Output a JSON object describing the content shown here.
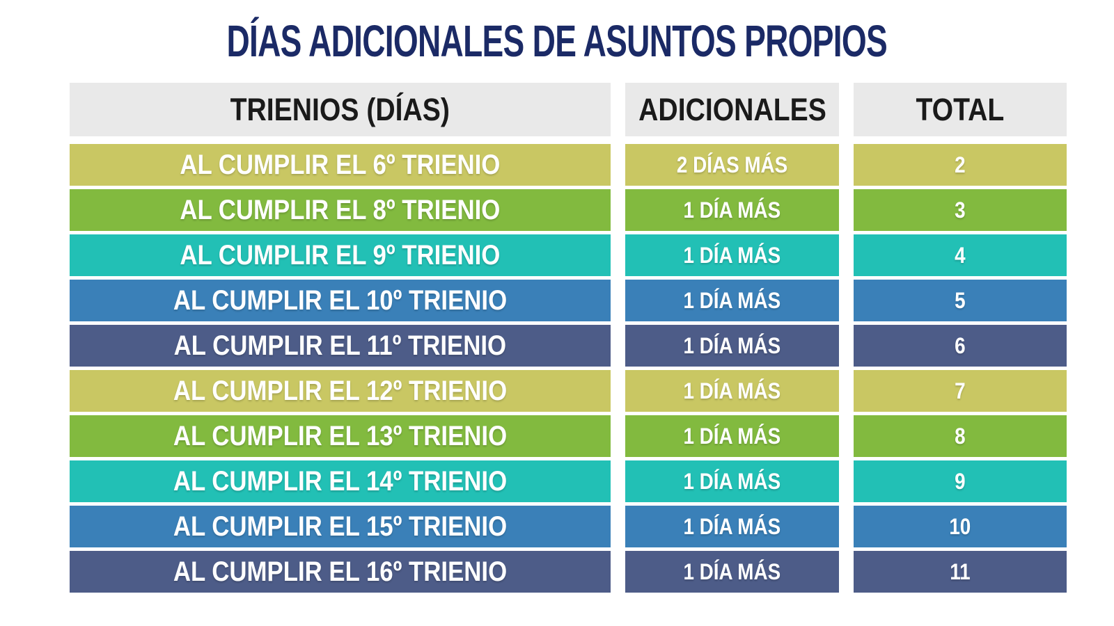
{
  "title": "DÍAS ADICIONALES DE ASUNTOS PROPIOS",
  "colors": {
    "title": "#1b2a66",
    "header_bg": "#e9e9e9",
    "header_text": "#1a1a1a",
    "row_text": "#ffffff",
    "palette_olive": "#c9c763",
    "palette_green": "#82ba3f",
    "palette_teal": "#22c0b5",
    "palette_blue": "#3a80b8",
    "palette_slate": "#4d5c88"
  },
  "table": {
    "headers": [
      "TRIENIOS (DÍAS)",
      "ADICIONALES",
      "TOTAL"
    ],
    "rows": [
      {
        "trienio": "AL CUMPLIR EL 6º TRIENIO",
        "adicionales": "2 DÍAS MÁS",
        "total": "2",
        "color": "#c9c763"
      },
      {
        "trienio": "AL CUMPLIR EL 8º TRIENIO",
        "adicionales": "1 DÍA MÁS",
        "total": "3",
        "color": "#82ba3f"
      },
      {
        "trienio": "AL CUMPLIR EL 9º TRIENIO",
        "adicionales": "1 DÍA MÁS",
        "total": "4",
        "color": "#22c0b5"
      },
      {
        "trienio": "AL CUMPLIR EL 10º TRIENIO",
        "adicionales": "1 DÍA MÁS",
        "total": "5",
        "color": "#3a80b8"
      },
      {
        "trienio": "AL CUMPLIR EL 11º TRIENIO",
        "adicionales": "1 DÍA MÁS",
        "total": "6",
        "color": "#4d5c88"
      },
      {
        "trienio": "AL CUMPLIR EL 12º TRIENIO",
        "adicionales": "1 DÍA MÁS",
        "total": "7",
        "color": "#c9c763"
      },
      {
        "trienio": "AL CUMPLIR EL 13º TRIENIO",
        "adicionales": "1 DÍA MÁS",
        "total": "8",
        "color": "#82ba3f"
      },
      {
        "trienio": "AL CUMPLIR EL 14º TRIENIO",
        "adicionales": "1 DÍA MÁS",
        "total": "9",
        "color": "#22c0b5"
      },
      {
        "trienio": "AL CUMPLIR EL 15º TRIENIO",
        "adicionales": "1 DÍA MÁS",
        "total": "10",
        "color": "#3a80b8"
      },
      {
        "trienio": "AL CUMPLIR EL 16º TRIENIO",
        "adicionales": "1 DÍA MÁS",
        "total": "11",
        "color": "#4d5c88"
      }
    ]
  }
}
